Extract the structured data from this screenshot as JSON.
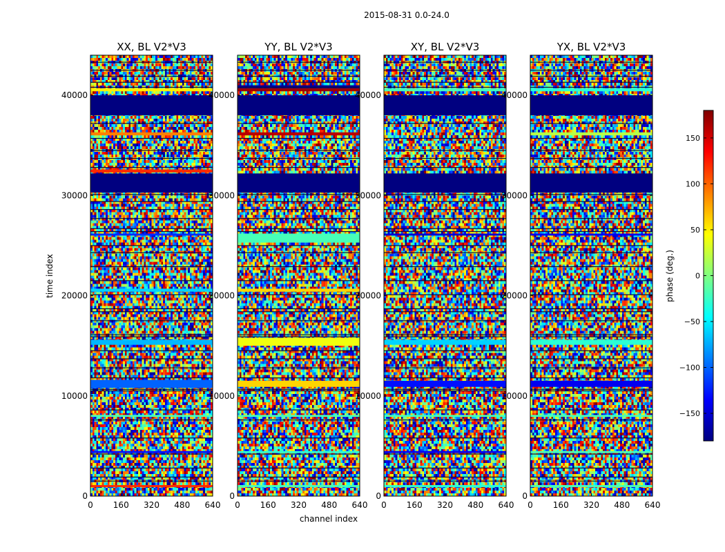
{
  "chart_data": {
    "type": "heatmap",
    "title": "2015-08-31 0.0-24.0",
    "xlabel": "channel index",
    "ylabel": "time index",
    "xlim": [
      0,
      640
    ],
    "ylim": [
      0,
      44000
    ],
    "x_ticks": [
      0,
      160,
      320,
      480,
      640
    ],
    "y_ticks": [
      0,
      10000,
      20000,
      30000,
      40000
    ],
    "colormap": "jet",
    "colorbar": {
      "label": "phase (deg.)",
      "range": [
        -180,
        180
      ],
      "ticks": [
        -150,
        -100,
        -50,
        0,
        50,
        100,
        150
      ],
      "tick_labels": [
        "−150",
        "−100",
        "−50",
        "0",
        "50",
        "100",
        "150"
      ]
    },
    "panels": [
      {
        "title": "XX, BL V2*V3",
        "bands": [
          {
            "t0": 38000,
            "t1": 40000,
            "phase": -180
          },
          {
            "t0": 30300,
            "t1": 32200,
            "phase": -180
          },
          {
            "t0": 36000,
            "t1": 36300,
            "phase": 90
          },
          {
            "t0": 32300,
            "t1": 32600,
            "phase": 120
          },
          {
            "t0": 40400,
            "t1": 40700,
            "phase": 50
          },
          {
            "t0": 26000,
            "t1": 26200,
            "phase": -120
          },
          {
            "t0": 20400,
            "t1": 20700,
            "phase": -60
          },
          {
            "t0": 15100,
            "t1": 15600,
            "phase": -70
          },
          {
            "t0": 10800,
            "t1": 11600,
            "phase": -100
          },
          {
            "t0": 7900,
            "t1": 8100,
            "phase": -20
          },
          {
            "t0": 4300,
            "t1": 4500,
            "phase": -130
          },
          {
            "t0": 900,
            "t1": 1100,
            "phase": 120
          }
        ]
      },
      {
        "title": "YY, BL V2*V3",
        "bands": [
          {
            "t0": 38000,
            "t1": 40000,
            "phase": -180
          },
          {
            "t0": 30300,
            "t1": 32200,
            "phase": -180
          },
          {
            "t0": 40700,
            "t1": 41000,
            "phase": -170
          },
          {
            "t0": 40400,
            "t1": 40700,
            "phase": 170
          },
          {
            "t0": 36000,
            "t1": 36300,
            "phase": 160
          },
          {
            "t0": 25300,
            "t1": 26200,
            "phase": -20
          },
          {
            "t0": 20400,
            "t1": 20700,
            "phase": 60
          },
          {
            "t0": 15000,
            "t1": 15800,
            "phase": 40
          },
          {
            "t0": 10900,
            "t1": 11500,
            "phase": 60
          },
          {
            "t0": 7900,
            "t1": 8100,
            "phase": -20
          },
          {
            "t0": 4300,
            "t1": 4500,
            "phase": -30
          },
          {
            "t0": 900,
            "t1": 1100,
            "phase": -20
          }
        ]
      },
      {
        "title": "XY, BL V2*V3",
        "bands": [
          {
            "t0": 38000,
            "t1": 40000,
            "phase": -180
          },
          {
            "t0": 30300,
            "t1": 32200,
            "phase": -180
          },
          {
            "t0": 40400,
            "t1": 40700,
            "phase": -20
          },
          {
            "t0": 26000,
            "t1": 26200,
            "phase": -150
          },
          {
            "t0": 15100,
            "t1": 15600,
            "phase": -60
          },
          {
            "t0": 10900,
            "t1": 11500,
            "phase": -130
          },
          {
            "t0": 7900,
            "t1": 8100,
            "phase": -20
          },
          {
            "t0": 4300,
            "t1": 4500,
            "phase": -140
          },
          {
            "t0": 900,
            "t1": 1100,
            "phase": -30
          }
        ]
      },
      {
        "title": "YX, BL V2*V3",
        "bands": [
          {
            "t0": 38000,
            "t1": 40000,
            "phase": -180
          },
          {
            "t0": 30300,
            "t1": 32200,
            "phase": -180
          },
          {
            "t0": 40400,
            "t1": 40700,
            "phase": -30
          },
          {
            "t0": 36000,
            "t1": 36300,
            "phase": 20
          },
          {
            "t0": 26000,
            "t1": 26200,
            "phase": -140
          },
          {
            "t0": 15100,
            "t1": 15600,
            "phase": -30
          },
          {
            "t0": 10900,
            "t1": 11500,
            "phase": -140
          },
          {
            "t0": 7900,
            "t1": 8100,
            "phase": -20
          },
          {
            "t0": 4300,
            "t1": 4500,
            "phase": -20
          },
          {
            "t0": 900,
            "t1": 1100,
            "phase": -20
          }
        ]
      }
    ],
    "gap_rows": [
      1500,
      1900,
      2800,
      4200,
      5800,
      7600,
      8600,
      10500,
      10650,
      11800,
      12800,
      13700,
      14500,
      15900,
      16100,
      17500,
      18400,
      18700,
      20100,
      21500,
      22900,
      24300,
      25000,
      26400,
      26700,
      27700,
      28600,
      29400,
      30100,
      32800,
      33700,
      34500,
      35700,
      37200,
      40800,
      41300,
      41900,
      42500,
      43300
    ]
  }
}
